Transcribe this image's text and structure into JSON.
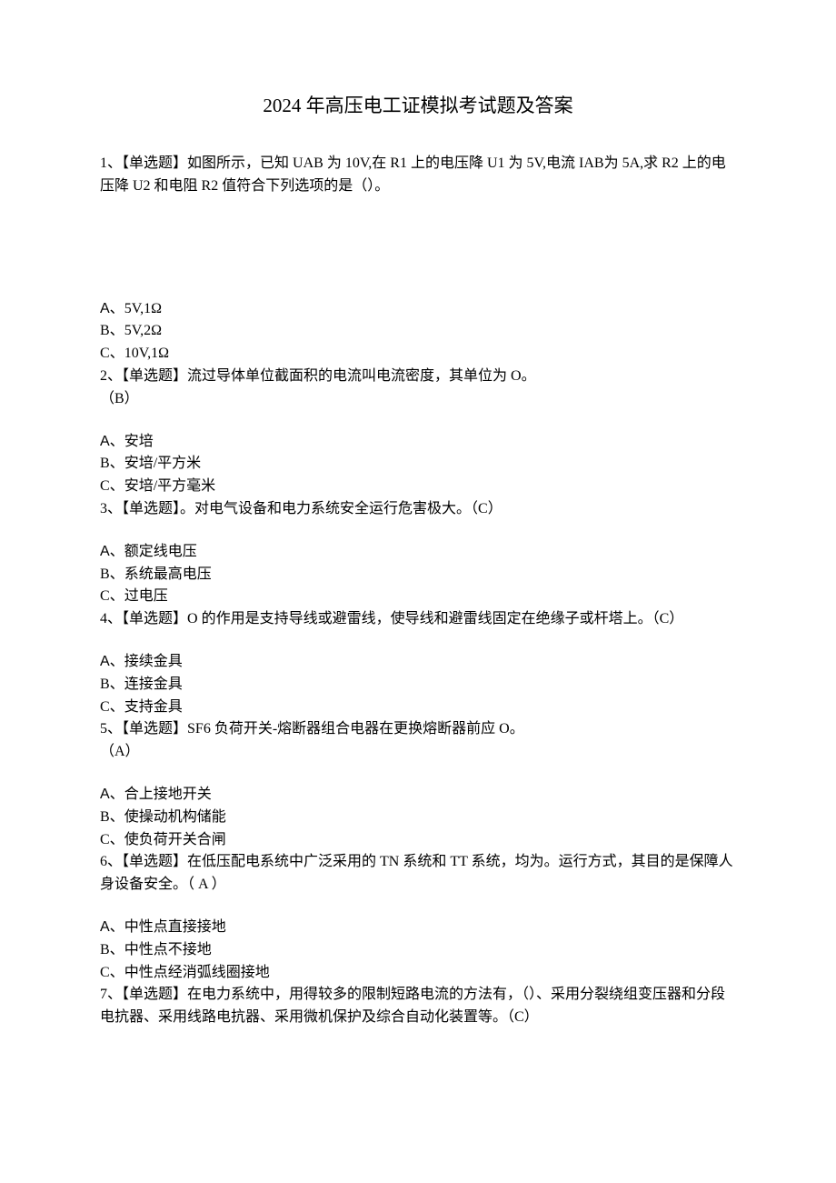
{
  "document": {
    "title": "2024 年高压电工证模拟考试题及答案",
    "title_fontsize": 21,
    "body_fontsize": 16,
    "line_height": 1.55,
    "text_color": "#000000",
    "background_color": "#ffffff",
    "font_family": "SimSun"
  },
  "questions": [
    {
      "number": "1",
      "type": "【单选题】",
      "text": "如图所示，已知 UAB 为 10V,在 R1 上的电压降 U1 为 5V,电流 IAB为 5A,求 R2 上的电压降 U2 和电阻 R2 值符合下列选项的是（）。",
      "has_figure": true,
      "answer": "",
      "options": [
        {
          "label": "A、",
          "text": "5V,1Ω"
        },
        {
          "label": "B、",
          "text": "5V,2Ω"
        },
        {
          "label": "C、",
          "text": "10V,1Ω"
        }
      ]
    },
    {
      "number": "2",
      "type": "【单选题】",
      "text": "流过导体单位截面积的电流叫电流密度，其单位为 O。",
      "answer": "（B）",
      "options": [
        {
          "label": "A、",
          "text": "安培"
        },
        {
          "label": "B、",
          "text": "安培/平方米"
        },
        {
          "label": "C、",
          "text": "安培/平方毫米"
        }
      ]
    },
    {
      "number": "3",
      "type": "【单选题】",
      "text": "。对电气设备和电力系统安全运行危害极大。（C）",
      "answer": "",
      "options": [
        {
          "label": "A、",
          "text": "额定线电压"
        },
        {
          "label": "B、",
          "text": "系统最高电压"
        },
        {
          "label": "C、",
          "text": "过电压"
        }
      ]
    },
    {
      "number": "4",
      "type": "【单选题】",
      "text": "O 的作用是支持导线或避雷线，使导线和避雷线固定在绝缘子或杆塔上。（C）",
      "answer": "",
      "options": [
        {
          "label": "A、",
          "text": "接续金具"
        },
        {
          "label": "B、",
          "text": "连接金具"
        },
        {
          "label": "C、",
          "text": "支持金具"
        }
      ]
    },
    {
      "number": "5",
      "type": "【单选题】",
      "text": "SF6 负荷开关-熔断器组合电器在更换熔断器前应 O。",
      "answer": "（A）",
      "options": [
        {
          "label": "A、",
          "text": "合上接地开关"
        },
        {
          "label": "B、",
          "text": "使操动机构储能"
        },
        {
          "label": "C、",
          "text": "使负荷开关合闸"
        }
      ]
    },
    {
      "number": "6",
      "type": "【单选题】",
      "text": "在低压配电系统中广泛采用的 TN 系统和 TT 系统，均为。运行方式，其目的是保障人身设备安全。（ A ）",
      "answer": "",
      "options": [
        {
          "label": "A、",
          "text": "中性点直接接地"
        },
        {
          "label": "B、",
          "text": "中性点不接地"
        },
        {
          "label": "C、",
          "text": "中性点经消弧线圈接地"
        }
      ]
    },
    {
      "number": "7",
      "type": "【单选题】",
      "text": "在电力系统中，用得较多的限制短路电流的方法有，（）、采用分裂绕组变压器和分段电抗器、采用线路电抗器、采用微机保护及综合自动化装置等。（C）",
      "answer": "",
      "options": []
    }
  ]
}
